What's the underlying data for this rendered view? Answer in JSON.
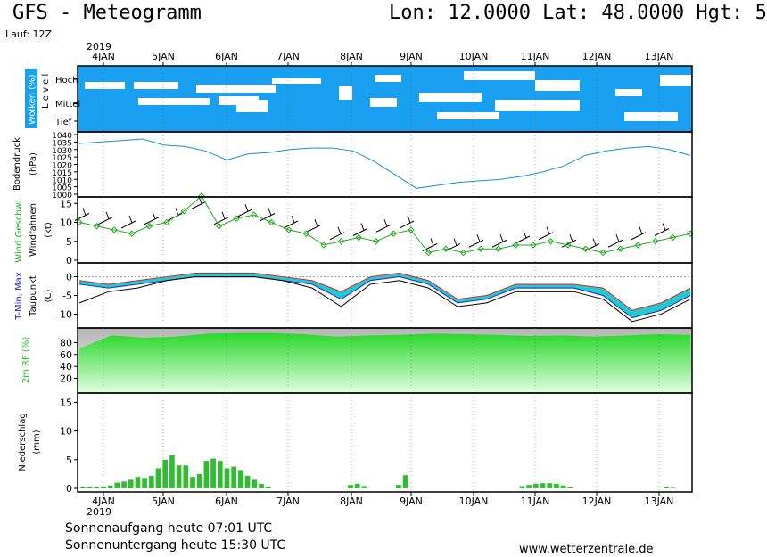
{
  "header": {
    "title": "GFS - Meteogramm",
    "location": "Lon: 12.0000 Lat: 48.0000 Hgt: 5",
    "run": "Lauf: 12Z"
  },
  "footer": {
    "sunrise": "Sonnenaufgang heute 07:01 UTC",
    "sunset": "Sonnenuntergang heute 15:30 UTC",
    "source": "www.wetterzentrale.de"
  },
  "colors": {
    "cloud": "#1aa0f0",
    "pressure": "#1a8fd0",
    "wind": "#22aa22",
    "tmin": "#2222dd",
    "tmax": "#dd2222",
    "dewpoint": "#000000",
    "humidity": "#22cc22",
    "precip": "#33bb33",
    "spread": "#22cccc"
  },
  "chart_data": {
    "type": "line",
    "year": "2019",
    "dates": [
      "4JAN",
      "5JAN",
      "6JAN",
      "7JAN",
      "8JAN",
      "9JAN",
      "10JAN",
      "11JAN",
      "12JAN",
      "13JAN"
    ],
    "panels": [
      {
        "id": "clouds",
        "ylabel": "Wolken (%)",
        "ylabel2": "L e v e l",
        "levels": [
          "Hoch",
          "Mittel",
          "Tief"
        ]
      },
      {
        "id": "pressure",
        "ylabel": "Bodendruck",
        "ylabel2": "(hPa)",
        "ylim": [
          1000,
          1040
        ],
        "ticks": [
          1000,
          1005,
          1010,
          1015,
          1020,
          1025,
          1030,
          1035,
          1040
        ],
        "series": [
          {
            "values": [
              1034,
              1035,
              1036,
              1037,
              1033,
              1032,
              1029,
              1023,
              1027,
              1028,
              1030,
              1031,
              1031,
              1029,
              1022,
              1013,
              1004,
              1006,
              1008,
              1009,
              1010,
              1012,
              1015,
              1019,
              1026,
              1029,
              1031,
              1032,
              1030,
              1026
            ]
          }
        ]
      },
      {
        "id": "wind",
        "ylabel": "Wind Geschwi.",
        "ylabel2": "Windfahnen",
        "ylabel3": "(kt)",
        "ylim": [
          0,
          16
        ],
        "ticks": [
          0,
          5,
          10,
          15
        ],
        "series": [
          {
            "name": "Wind Geschwi.",
            "values": [
              10,
              9,
              8,
              7,
              9,
              10,
              13,
              17,
              9,
              11,
              12,
              10,
              8,
              7,
              4,
              5,
              6,
              5,
              7,
              8,
              2,
              3,
              2,
              3,
              3,
              4,
              4,
              5,
              4,
              3,
              2,
              3,
              4,
              5,
              6,
              7
            ]
          }
        ]
      },
      {
        "id": "temperature",
        "ylabel": "T-Min, Max",
        "ylabel2": "Taupunkt",
        "ylabel3": "(C)",
        "ylim": [
          -13,
          3
        ],
        "ticks": [
          -10,
          -5,
          0
        ],
        "series": [
          {
            "name": "T-Max",
            "values": [
              -1,
              -2,
              -1,
              0,
              1,
              1,
              1,
              0,
              -1,
              -4,
              0,
              1,
              -1,
              -6,
              -5,
              -2,
              -2,
              -2,
              -3,
              -9,
              -7,
              -3
            ]
          },
          {
            "name": "T-Min",
            "values": [
              -2,
              -3,
              -2,
              -1,
              0,
              0,
              0,
              -1,
              -2,
              -6,
              -1,
              0,
              -2,
              -7,
              -6,
              -3,
              -3,
              -3,
              -5,
              -11,
              -9,
              -5
            ]
          },
          {
            "name": "Taupunkt",
            "values": [
              -7,
              -4,
              -3,
              -1,
              0,
              0,
              0,
              -1,
              -3,
              -8,
              -2,
              -1,
              -3,
              -8,
              -7,
              -4,
              -4,
              -4,
              -6,
              -12,
              -10,
              -6
            ]
          }
        ]
      },
      {
        "id": "humidity",
        "ylabel": "2m RF (%)",
        "ylim": [
          0,
          100
        ],
        "ticks": [
          20,
          40,
          60,
          80
        ],
        "series": [
          {
            "values": [
              70,
              92,
              88,
              90,
              95,
              96,
              96,
              94,
              90,
              92,
              93,
              95,
              94,
              93,
              91,
              92,
              90,
              92,
              94,
              93
            ]
          }
        ]
      },
      {
        "id": "precip",
        "ylabel": "Niederschlag",
        "ylabel2": "(mm)",
        "ylim": [
          0,
          16
        ],
        "ticks": [
          0,
          5,
          10,
          15
        ],
        "series": [
          {
            "values": [
              0.2,
              0.3,
              0.2,
              0.3,
              0.5,
              1.0,
              1.2,
              1.5,
              2.0,
              1.8,
              2.2,
              3.5,
              5.0,
              5.8,
              4.0,
              4.0,
              2.0,
              2.5,
              4.8,
              5.2,
              4.8,
              3.5,
              3.8,
              3.2,
              2.2,
              1.5,
              0.8,
              0.3,
              0,
              0,
              0,
              0,
              0,
              0,
              0,
              0,
              0,
              0,
              0,
              0.6,
              0.8,
              0.4,
              0,
              0,
              0,
              0,
              0.6,
              2.3,
              0,
              0,
              0,
              0,
              0,
              0,
              0,
              0,
              0,
              0,
              0,
              0,
              0,
              0,
              0,
              0,
              0.4,
              0.6,
              0.8,
              0.9,
              0.9,
              0.8,
              0.5,
              0.2,
              0,
              0,
              0,
              0,
              0,
              0,
              0,
              0,
              0,
              0,
              0,
              0,
              0,
              0.2,
              0.1,
              0,
              0
            ]
          }
        ]
      }
    ]
  }
}
